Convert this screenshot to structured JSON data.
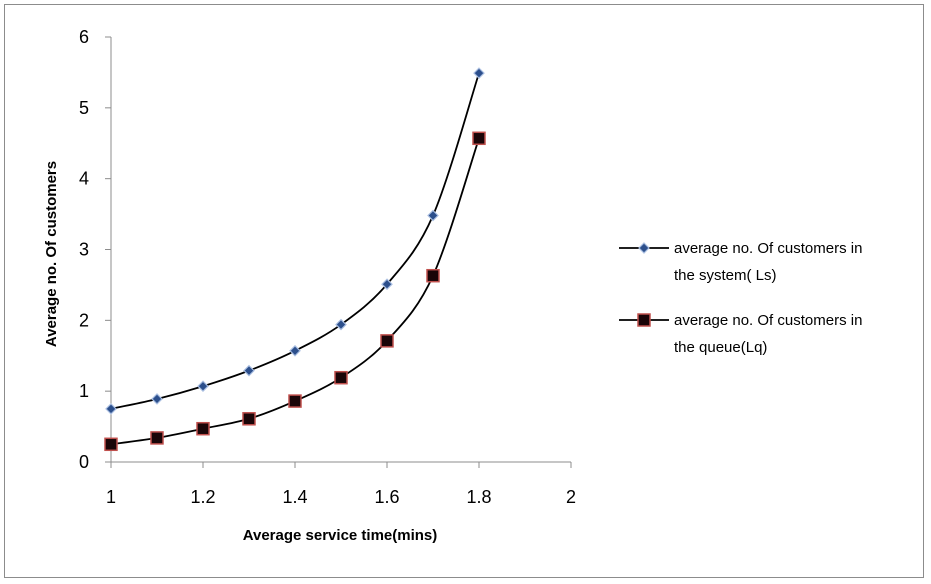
{
  "chart_data": {
    "type": "line",
    "xlabel": "Average service time(mins)",
    "ylabel": "Average no. Of customers",
    "xlim": [
      1,
      2
    ],
    "ylim": [
      0,
      6
    ],
    "x_ticks": [
      "1",
      "1.2",
      "1.4",
      "1.6",
      "1.8",
      "2"
    ],
    "y_ticks": [
      "0",
      "1",
      "2",
      "3",
      "4",
      "5",
      "6"
    ],
    "grid": false,
    "legend_position": "right",
    "series": [
      {
        "name_lines": [
          "average no. Of customers in",
          "the system( Ls)"
        ],
        "marker": "diamond",
        "color": "#1f3b73",
        "x": [
          1.0,
          1.1,
          1.2,
          1.3,
          1.4,
          1.5,
          1.6,
          1.7,
          1.8
        ],
        "y": [
          0.75,
          0.89,
          1.07,
          1.29,
          1.57,
          1.94,
          2.51,
          3.48,
          5.49
        ]
      },
      {
        "name_lines": [
          "average no. Of customers in",
          "the queue(Lq)"
        ],
        "marker": "square",
        "color": "#7a0f1a",
        "x": [
          1.0,
          1.1,
          1.2,
          1.3,
          1.4,
          1.5,
          1.6,
          1.7,
          1.8
        ],
        "y": [
          0.25,
          0.34,
          0.47,
          0.61,
          0.86,
          1.19,
          1.71,
          2.63,
          4.57
        ]
      }
    ]
  }
}
